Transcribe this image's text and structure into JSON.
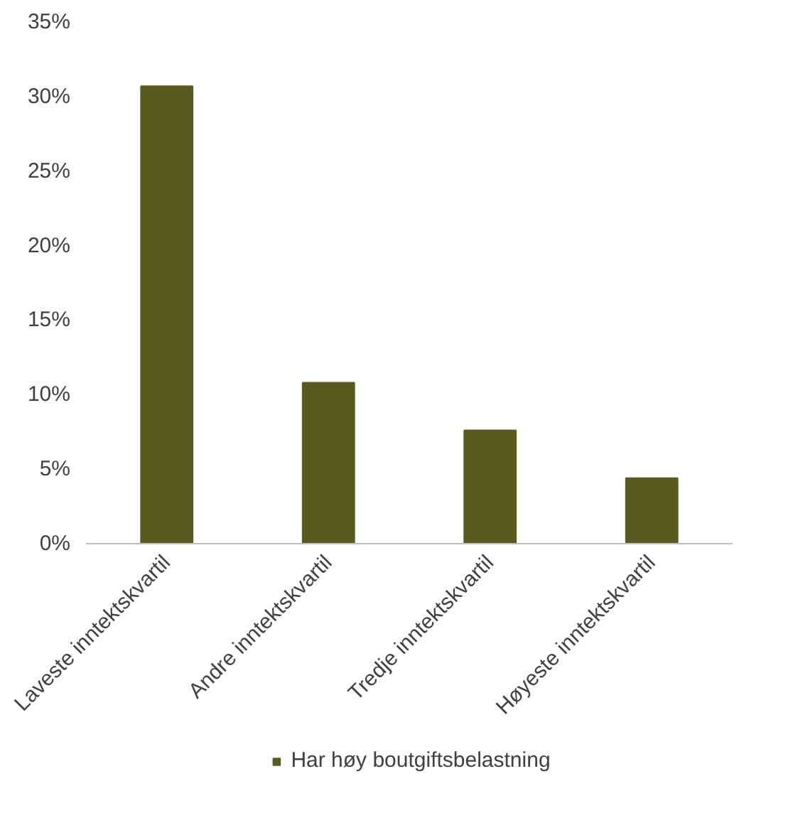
{
  "chart_data": {
    "type": "bar",
    "categories": [
      "Laveste inntektskvartil",
      "Andre inntektskvartil",
      "Tredje inntektskvartil",
      "Høyeste inntektskvartil"
    ],
    "series": [
      {
        "name": "Har høy boutgiftsbelastning",
        "color": "#5b5a1e",
        "values": [
          30.7,
          10.8,
          7.6,
          4.4
        ]
      }
    ],
    "ylim": [
      0,
      35
    ],
    "yticks": [
      {
        "value": 0,
        "label": "0%"
      },
      {
        "value": 5,
        "label": "5%"
      },
      {
        "value": 10,
        "label": "10%"
      },
      {
        "value": 15,
        "label": "15%"
      },
      {
        "value": 20,
        "label": "20%"
      },
      {
        "value": 25,
        "label": "25%"
      },
      {
        "value": 30,
        "label": "30%"
      },
      {
        "value": 35,
        "label": "35%"
      }
    ],
    "grid": false,
    "legend": "bottom"
  }
}
